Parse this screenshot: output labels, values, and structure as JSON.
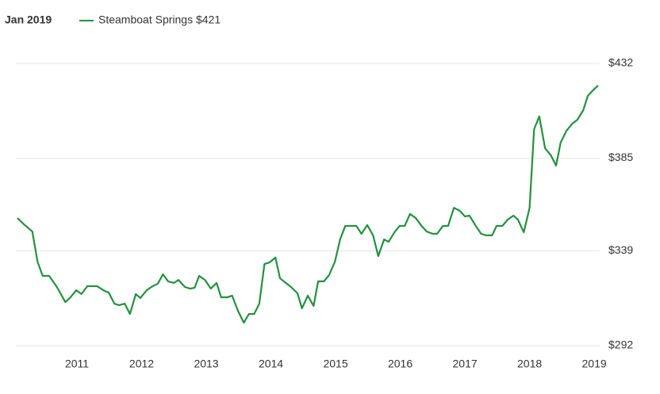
{
  "chart_data": {
    "type": "line",
    "title": "Jan 2019",
    "x": [
      2010.08,
      2010.18,
      2010.31,
      2010.39,
      2010.47,
      2010.57,
      2010.69,
      2010.82,
      2010.89,
      2010.99,
      2011.07,
      2011.16,
      2011.31,
      2011.43,
      2011.49,
      2011.58,
      2011.65,
      2011.74,
      2011.82,
      2011.91,
      2011.98,
      2012.08,
      2012.17,
      2012.25,
      2012.33,
      2012.41,
      2012.5,
      2012.57,
      2012.67,
      2012.75,
      2012.82,
      2012.89,
      2012.98,
      2013.07,
      2013.16,
      2013.23,
      2013.33,
      2013.4,
      2013.49,
      2013.58,
      2013.66,
      2013.74,
      2013.82,
      2013.9,
      2013.98,
      2014.07,
      2014.14,
      2014.23,
      2014.31,
      2014.41,
      2014.48,
      2014.57,
      2014.66,
      2014.73,
      2014.82,
      2014.9,
      2014.99,
      2015.07,
      2015.15,
      2015.23,
      2015.32,
      2015.4,
      2015.49,
      2015.58,
      2015.66,
      2015.75,
      2015.82,
      2015.91,
      2015.99,
      2016.07,
      2016.15,
      2016.24,
      2016.33,
      2016.41,
      2016.5,
      2016.57,
      2016.66,
      2016.74,
      2016.83,
      2016.92,
      2017.0,
      2017.07,
      2017.16,
      2017.25,
      2017.33,
      2017.42,
      2017.49,
      2017.58,
      2017.66,
      2017.75,
      2017.82,
      2017.91,
      2018.0,
      2018.07,
      2018.15,
      2018.24,
      2018.33,
      2018.41,
      2018.48,
      2018.57,
      2018.66,
      2018.74,
      2018.83,
      2018.9,
      2018.99,
      2019.06
    ],
    "series": [
      {
        "name": "Steamboat Springs $421",
        "color": "#24903f",
        "values": [
          355.3,
          352.2,
          348.6,
          333.7,
          326.6,
          326.6,
          321.1,
          313.6,
          315.6,
          319.5,
          317.6,
          321.5,
          321.5,
          319.1,
          318.4,
          312.8,
          312.1,
          312.8,
          307.7,
          317.6,
          315.6,
          319.5,
          321.5,
          322.7,
          327.4,
          323.9,
          323.1,
          324.6,
          321.1,
          320.3,
          320.7,
          326.6,
          324.6,
          320.3,
          323.1,
          316.0,
          316.0,
          316.8,
          309.3,
          303.4,
          307.7,
          307.7,
          312.8,
          332.5,
          333.3,
          335.7,
          325.4,
          323.1,
          321.1,
          318.0,
          310.5,
          316.8,
          311.7,
          323.9,
          323.9,
          327.0,
          333.7,
          344.7,
          351.4,
          351.4,
          351.4,
          347.5,
          351.8,
          346.7,
          336.4,
          344.7,
          343.5,
          348.2,
          351.4,
          351.4,
          357.3,
          355.3,
          351.4,
          348.6,
          347.5,
          347.5,
          351.4,
          351.4,
          360.4,
          358.9,
          356.1,
          356.5,
          351.8,
          347.5,
          346.7,
          346.7,
          351.4,
          351.4,
          354.5,
          356.5,
          354.5,
          348.2,
          360.4,
          399.4,
          405.7,
          389.9,
          386.4,
          381.3,
          392.7,
          398.6,
          402.1,
          404.1,
          408.8,
          415.9,
          419.0,
          421
        ]
      }
    ],
    "xlim": [
      2010.08,
      2019.06
    ],
    "xticks": [
      2011,
      2012,
      2013,
      2014,
      2015,
      2016,
      2017,
      2018,
      2019
    ],
    "ylim": [
      292,
      432
    ],
    "yticks": [
      {
        "value": 292,
        "label": "$292"
      },
      {
        "value": 339,
        "label": "$339"
      },
      {
        "value": 385,
        "label": "$385"
      },
      {
        "value": 432,
        "label": "$432"
      }
    ],
    "grid": true
  }
}
